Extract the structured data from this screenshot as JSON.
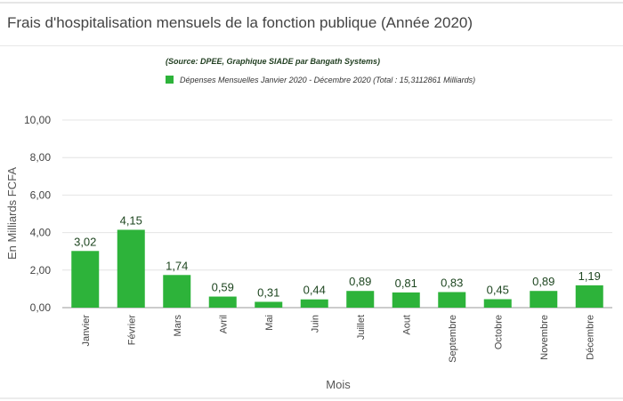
{
  "header": {
    "title": "Frais d'hospitalisation mensuels de la fonction publique (Année 2020)"
  },
  "chart_data": {
    "type": "bar",
    "subtitle": "(Source: DPEE, Graphique SIADE par Bangath Systems)",
    "categories": [
      "Janvier",
      "Février",
      "Mars",
      "Avril",
      "Mai",
      "Juin",
      "Juillet",
      "Aout",
      "Septembre",
      "Octobre",
      "Novembre",
      "Décembre"
    ],
    "series": [
      {
        "name": "Dépenses Mensuelles Janvier 2020 - Décembre 2020 (Total : 15,3112861 Milliards)",
        "values": [
          3.02,
          4.15,
          1.74,
          0.59,
          0.31,
          0.44,
          0.89,
          0.81,
          0.83,
          0.45,
          0.89,
          1.19
        ],
        "color": "#2db33a"
      }
    ],
    "data_labels": [
      "3,02",
      "4,15",
      "1,74",
      "0,59",
      "0,31",
      "0,44",
      "0,89",
      "0,81",
      "0,83",
      "0,45",
      "0,89",
      "1,19"
    ],
    "yticks": [
      "0,00",
      "2,00",
      "4,00",
      "6,00",
      "8,00",
      "10,00"
    ],
    "ylim": [
      0,
      10
    ],
    "xlabel": "Mois",
    "ylabel": "En Milliards FCFA",
    "grid": true,
    "legend": "top-center"
  }
}
